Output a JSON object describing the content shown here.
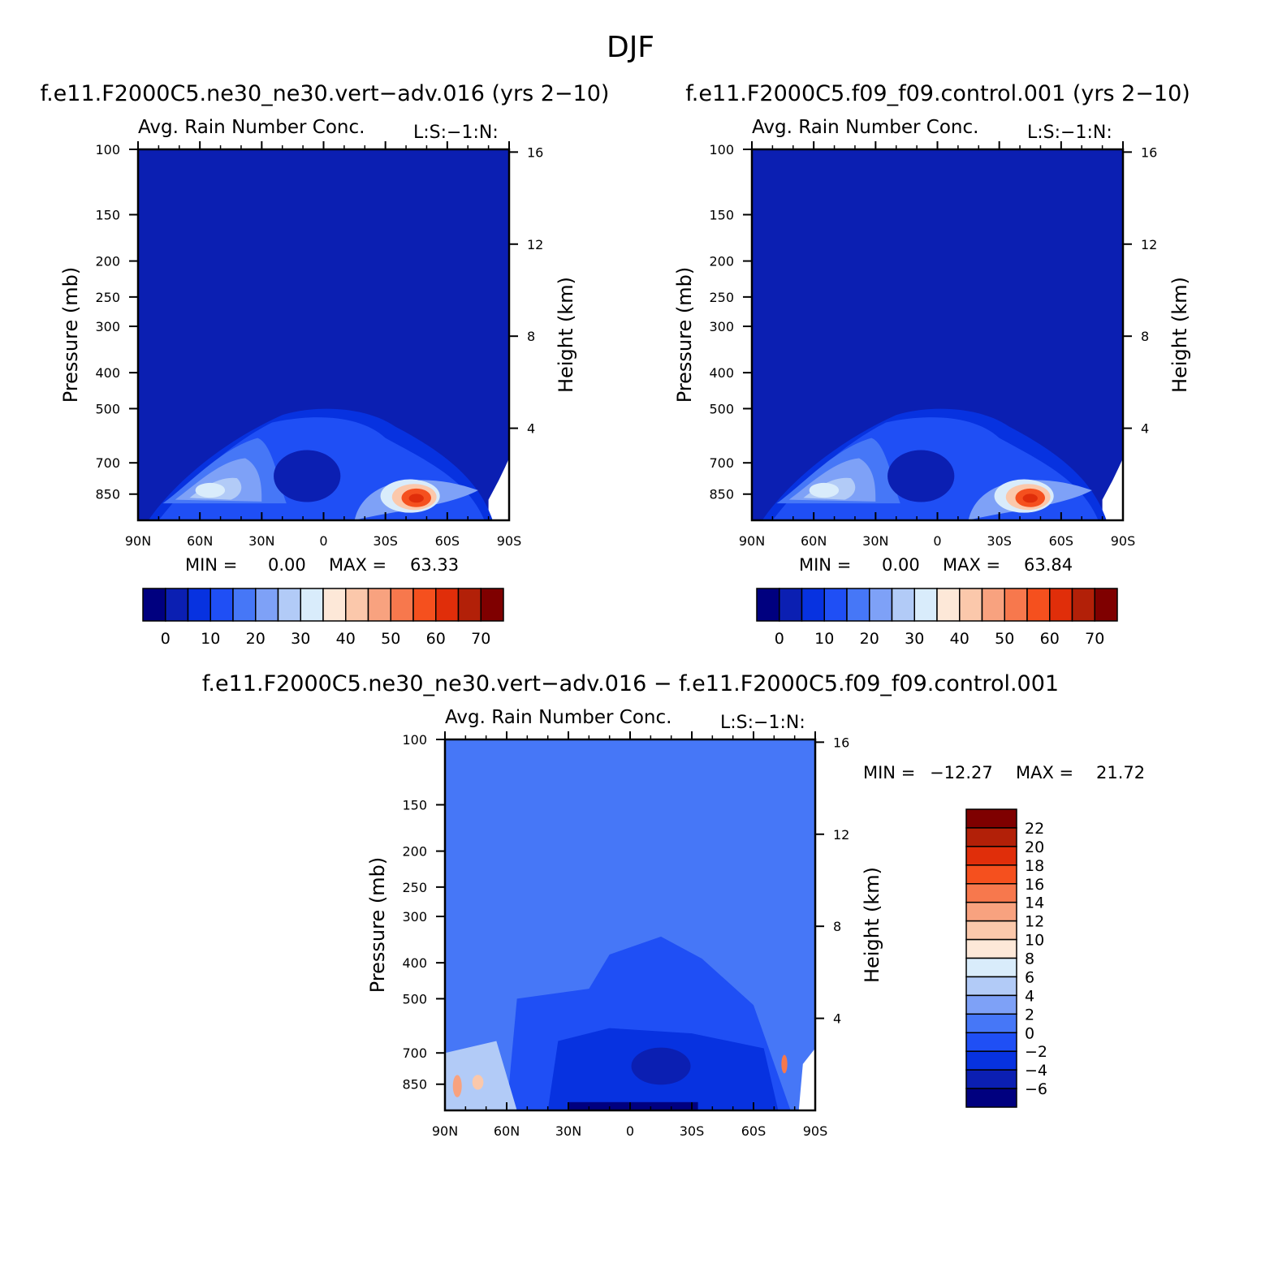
{
  "season": "DJF",
  "panels": [
    {
      "case_title": "f.e11.F2000C5.ne30_ne30.vert−adv.016 (yrs 2−10)",
      "subtitle": "Avg. Rain Number Conc.",
      "corner": "L:S:−1:N:",
      "min_label": "MIN =",
      "min_value": "0.00",
      "max_label": "MAX =",
      "max_value": "63.33"
    },
    {
      "case_title": "f.e11.F2000C5.f09_f09.control.001 (yrs 2−10)",
      "subtitle": "Avg. Rain Number Conc.",
      "corner": "L:S:−1:N:",
      "min_label": "MIN =",
      "min_value": "0.00",
      "max_label": "MAX =",
      "max_value": "63.84"
    },
    {
      "case_title": "f.e11.F2000C5.ne30_ne30.vert−adv.016 − f.e11.F2000C5.f09_f09.control.001",
      "subtitle": "Avg. Rain Number Conc.",
      "corner": "L:S:−1:N:",
      "min_label": "MIN =",
      "min_value": "−12.27",
      "max_label": "MAX =",
      "max_value": "21.72"
    }
  ],
  "axes": {
    "y_left_title": "Pressure (mb)",
    "y_right_title": "Height (km)",
    "x_ticks": [
      "90N",
      "60N",
      "30N",
      "0",
      "30S",
      "60S",
      "90S"
    ],
    "pressure_ticks": [
      "100",
      "150",
      "200",
      "250",
      "300",
      "400",
      "500",
      "700",
      "850"
    ],
    "height_ticks": [
      "16",
      "12",
      "8",
      "4"
    ]
  },
  "colorbars": {
    "abs_colors": [
      "#00007f",
      "#0b1fb2",
      "#0732e0",
      "#1f4ff5",
      "#4677f7",
      "#7ea1f7",
      "#b2cbf7",
      "#d9ecfb",
      "#fde8d8",
      "#fbc8ab",
      "#f8a27f",
      "#f7784d",
      "#f5501e",
      "#e02e0a",
      "#b22008",
      "#7f0000"
    ],
    "abs_labels": [
      "0",
      "10",
      "20",
      "30",
      "40",
      "50",
      "60",
      "70"
    ],
    "diff_colors": [
      "#00007f",
      "#0b1fb2",
      "#0732e0",
      "#1f4ff5",
      "#4677f7",
      "#7ea1f7",
      "#b2cbf7",
      "#d9ecfb",
      "#fde8d8",
      "#fbc8ab",
      "#f8a27f",
      "#f7784d",
      "#f5501e",
      "#e02e0a",
      "#b22008",
      "#7f0000"
    ],
    "diff_labels": [
      "22",
      "20",
      "18",
      "16",
      "14",
      "12",
      "10",
      "8",
      "6",
      "4",
      "2",
      "0",
      "−2",
      "−4",
      "−6"
    ]
  },
  "chart_data": [
    {
      "type": "heatmap",
      "title": "Avg. Rain Number Conc.",
      "x_categories": [
        "90N",
        "60N",
        "30N",
        "0",
        "30S",
        "60S",
        "90S"
      ],
      "y_ticks_pressure_mb": [
        100,
        150,
        200,
        250,
        300,
        400,
        500,
        700,
        850
      ],
      "y_ticks_height_km": [
        16,
        12,
        8,
        4
      ],
      "xlabel": "",
      "ylabel": "Pressure (mb)",
      "ylabel_right": "Height (km)",
      "y_log_scale": true,
      "ylim": [
        100,
        1000
      ],
      "min": 0.0,
      "max": 63.33,
      "colorbar_levels": [
        0,
        5,
        10,
        15,
        20,
        25,
        30,
        35,
        40,
        45,
        50,
        55,
        60,
        65,
        70
      ],
      "features": [
        {
          "lat": -45,
          "pressure": 850,
          "value": 60
        },
        {
          "lat": 65,
          "pressure": 850,
          "value": 30
        },
        {
          "lat": 50,
          "pressure": 800,
          "value": 25
        },
        {
          "lat": 0,
          "pressure": 550,
          "value": 20
        },
        {
          "lat": 0,
          "pressure": 100,
          "value": 5
        }
      ]
    },
    {
      "type": "heatmap",
      "title": "Avg. Rain Number Conc.",
      "x_categories": [
        "90N",
        "60N",
        "30N",
        "0",
        "30S",
        "60S",
        "90S"
      ],
      "y_ticks_pressure_mb": [
        100,
        150,
        200,
        250,
        300,
        400,
        500,
        700,
        850
      ],
      "y_ticks_height_km": [
        16,
        12,
        8,
        4
      ],
      "xlabel": "",
      "ylabel": "Pressure (mb)",
      "ylabel_right": "Height (km)",
      "y_log_scale": true,
      "ylim": [
        100,
        1000
      ],
      "min": 0.0,
      "max": 63.84,
      "colorbar_levels": [
        0,
        5,
        10,
        15,
        20,
        25,
        30,
        35,
        40,
        45,
        50,
        55,
        60,
        65,
        70
      ],
      "features": [
        {
          "lat": -45,
          "pressure": 850,
          "value": 60
        },
        {
          "lat": 65,
          "pressure": 850,
          "value": 30
        },
        {
          "lat": 50,
          "pressure": 800,
          "value": 25
        },
        {
          "lat": 0,
          "pressure": 550,
          "value": 20
        },
        {
          "lat": 0,
          "pressure": 100,
          "value": 5
        }
      ]
    },
    {
      "type": "heatmap",
      "title": "Avg. Rain Number Conc.",
      "x_categories": [
        "90N",
        "60N",
        "30N",
        "0",
        "30S",
        "60S",
        "90S"
      ],
      "y_ticks_pressure_mb": [
        100,
        150,
        200,
        250,
        300,
        400,
        500,
        700,
        850
      ],
      "y_ticks_height_km": [
        16,
        12,
        8,
        4
      ],
      "xlabel": "",
      "ylabel": "Pressure (mb)",
      "ylabel_right": "Height (km)",
      "y_log_scale": true,
      "ylim": [
        100,
        1000
      ],
      "min": -12.27,
      "max": 21.72,
      "colorbar_levels": [
        -6,
        -4,
        -2,
        0,
        2,
        4,
        6,
        8,
        10,
        12,
        14,
        16,
        18,
        20,
        22
      ],
      "features": [
        {
          "lat": 85,
          "pressure": 850,
          "value": 12
        },
        {
          "lat": 72,
          "pressure": 850,
          "value": 10
        },
        {
          "lat": -75,
          "pressure": 750,
          "value": 16
        },
        {
          "lat": 20,
          "pressure": 900,
          "value": -8
        },
        {
          "lat": -20,
          "pressure": 750,
          "value": -6
        },
        {
          "lat": 0,
          "pressure": 100,
          "value": 0
        }
      ]
    }
  ]
}
